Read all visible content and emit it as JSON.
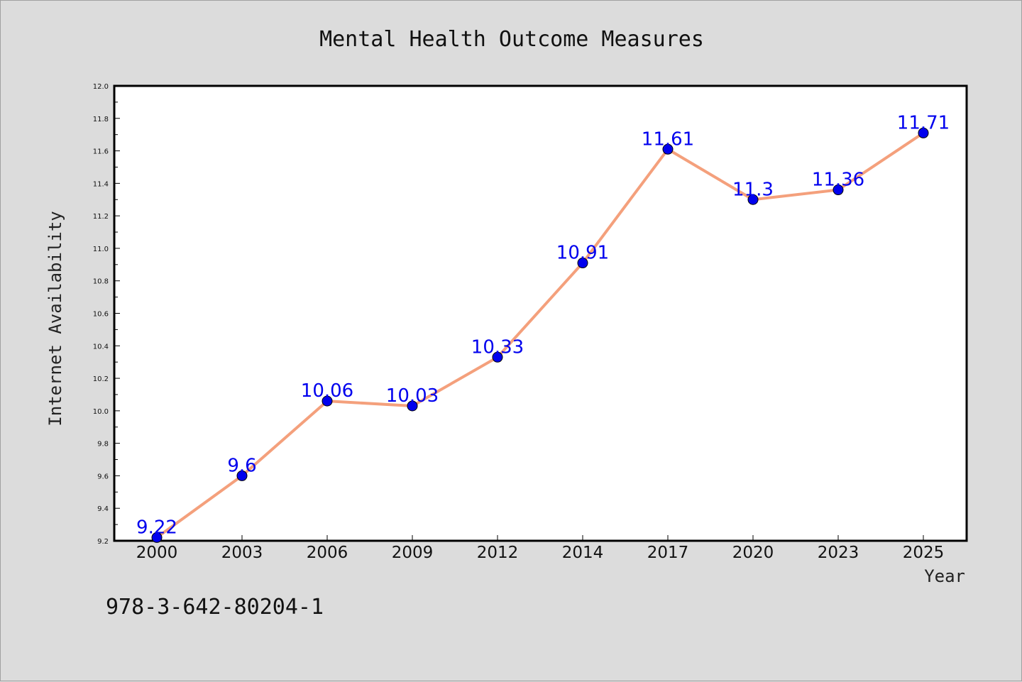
{
  "chart_data": {
    "type": "line",
    "title": "Mental Health Outcome Measures",
    "xlabel": "Year",
    "ylabel": "Internet Availability",
    "categories": [
      "2000",
      "2003",
      "2006",
      "2009",
      "2012",
      "2014",
      "2017",
      "2020",
      "2023",
      "2025"
    ],
    "series": [
      {
        "values": [
          9.22,
          9.6,
          10.06,
          10.03,
          10.33,
          10.91,
          11.61,
          11.3,
          11.36,
          11.71
        ],
        "data_labels": [
          "9.22",
          "9.6",
          "10.06",
          "10.03",
          "10.33",
          "10.91",
          "11.61",
          "11.3",
          "11.36",
          "11.71"
        ],
        "line_color": "#f4a07c",
        "marker_color": "#0000ee",
        "label_color": "#0000ee"
      }
    ],
    "ylim": [
      9.2,
      12.0
    ],
    "yticks": [
      "9.2",
      "9.4",
      "9.6",
      "9.8",
      "10.0",
      "10.2",
      "10.4",
      "10.6",
      "10.8",
      "11.0",
      "11.2",
      "11.4",
      "11.6",
      "11.8",
      "12.0"
    ],
    "grid": false,
    "legend": "none"
  },
  "footnote": "978-3-642-80204-1",
  "colors": {
    "background": "#dcdcdc",
    "plot_background": "#ffffff"
  }
}
